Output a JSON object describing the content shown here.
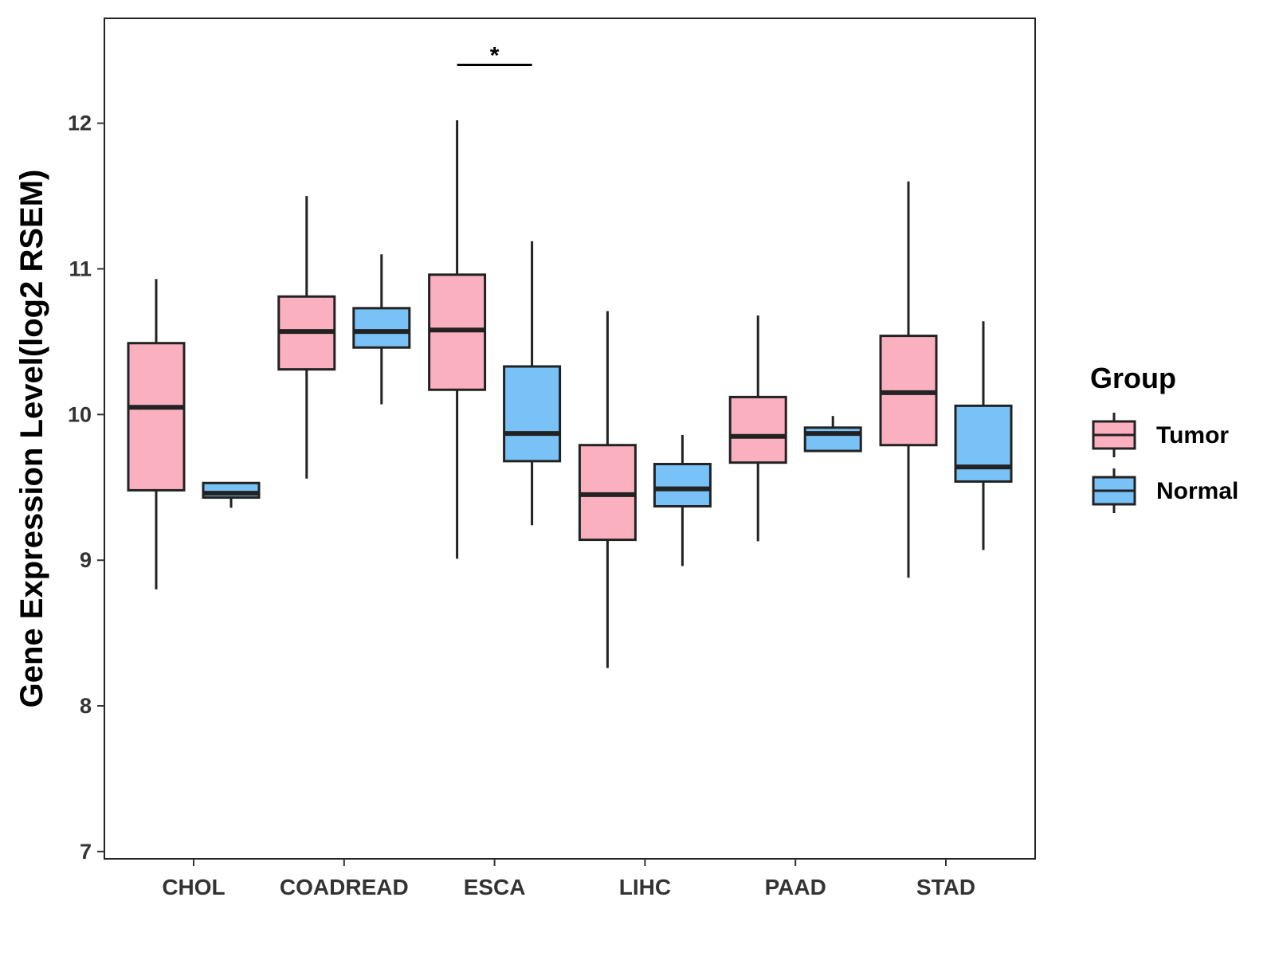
{
  "chart_data": {
    "type": "boxplot",
    "title": "",
    "xlabel": "",
    "ylabel": "Gene Expression Level(log2 RSEM)",
    "ylim": [
      6.95,
      12.72
    ],
    "yticks": [
      7,
      8,
      9,
      10,
      11,
      12
    ],
    "grid": false,
    "legend": {
      "title": "Group",
      "position": "right",
      "entries": [
        {
          "name": "Tumor",
          "color": "#FBB0C0"
        },
        {
          "name": "Normal",
          "color": "#78C2F8"
        }
      ]
    },
    "categories": [
      "CHOL",
      "COADREAD",
      "ESCA",
      "LIHC",
      "PAAD",
      "STAD"
    ],
    "series": [
      {
        "name": "Tumor",
        "color": "#FBB0C0",
        "boxes": [
          {
            "category": "CHOL",
            "min": 8.8,
            "q1": 9.48,
            "median": 10.05,
            "q3": 10.49,
            "max": 10.93
          },
          {
            "category": "COADREAD",
            "min": 9.56,
            "q1": 10.31,
            "median": 10.57,
            "q3": 10.81,
            "max": 11.5
          },
          {
            "category": "ESCA",
            "min": 9.01,
            "q1": 10.17,
            "median": 10.58,
            "q3": 10.96,
            "max": 12.02
          },
          {
            "category": "LIHC",
            "min": 8.26,
            "q1": 9.14,
            "median": 9.45,
            "q3": 9.79,
            "max": 10.71
          },
          {
            "category": "PAAD",
            "min": 9.13,
            "q1": 9.67,
            "median": 9.85,
            "q3": 10.12,
            "max": 10.68
          },
          {
            "category": "STAD",
            "min": 8.88,
            "q1": 9.79,
            "median": 10.15,
            "q3": 10.54,
            "max": 11.6
          }
        ]
      },
      {
        "name": "Normal",
        "color": "#78C2F8",
        "boxes": [
          {
            "category": "CHOL",
            "min": 9.36,
            "q1": 9.43,
            "median": 9.46,
            "q3": 9.53,
            "max": 9.53
          },
          {
            "category": "COADREAD",
            "min": 10.07,
            "q1": 10.46,
            "median": 10.57,
            "q3": 10.73,
            "max": 11.1
          },
          {
            "category": "ESCA",
            "min": 9.24,
            "q1": 9.68,
            "median": 9.87,
            "q3": 10.33,
            "max": 11.19
          },
          {
            "category": "LIHC",
            "min": 8.96,
            "q1": 9.37,
            "median": 9.49,
            "q3": 9.66,
            "max": 9.86
          },
          {
            "category": "PAAD",
            "min": 9.75,
            "q1": 9.75,
            "median": 9.87,
            "q3": 9.91,
            "max": 9.99
          },
          {
            "category": "STAD",
            "min": 9.07,
            "q1": 9.54,
            "median": 9.64,
            "q3": 10.06,
            "max": 10.64
          }
        ]
      }
    ],
    "annotations": [
      {
        "category": "ESCA",
        "text": "*",
        "y": 12.4
      }
    ]
  }
}
